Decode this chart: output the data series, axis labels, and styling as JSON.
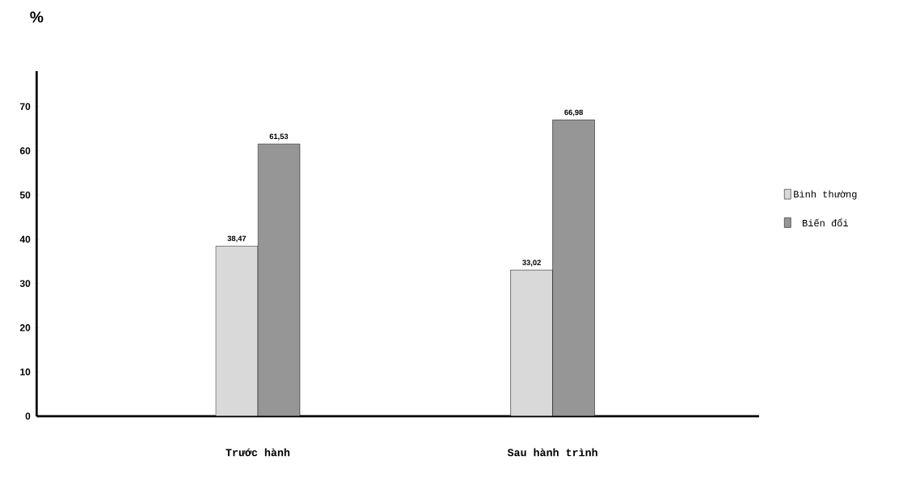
{
  "chart_data": {
    "type": "bar",
    "ylabel": "%",
    "categories": [
      "Trước hành",
      "Sau hành trình"
    ],
    "series": [
      {
        "name": "Bình thường",
        "color": "#d9d9d9",
        "values": [
          38.47,
          33.02
        ],
        "value_labels": [
          "38,47",
          "33,02"
        ]
      },
      {
        "name": "Biến đổi",
        "color": "#969696",
        "values": [
          61.53,
          66.98
        ],
        "value_labels": [
          "61,53",
          "66,98"
        ]
      }
    ],
    "ylim": [
      0,
      78
    ],
    "yticks": [
      0,
      10,
      20,
      30,
      40,
      50,
      60,
      70
    ],
    "grid": false,
    "legend": "right"
  }
}
